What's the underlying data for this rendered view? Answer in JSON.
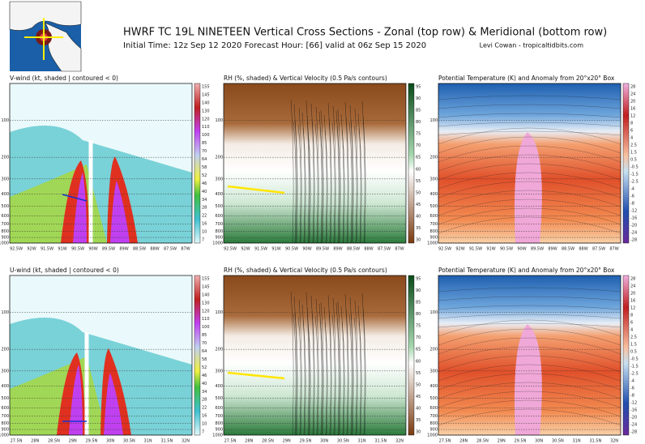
{
  "header": {
    "title": "HWRF TC 19L NINETEEN Vertical Cross Sections - Zonal (top row) & Meridional (bottom row)",
    "subtitle": "Initial Time: 12z Sep 12 2020 Forecast Hour: [66] valid at 06z Sep 15 2020",
    "credit": "Levi Cowan - tropicaltidbits.com"
  },
  "pressure_axis": {
    "ylim": [
      1000,
      50
    ],
    "log": true,
    "ticks": [
      100,
      200,
      300,
      400,
      500,
      600,
      700,
      800,
      900,
      1000
    ]
  },
  "rows": [
    {
      "xticks": [
        "92.5W",
        "92W",
        "91.5W",
        "91W",
        "90.5W",
        "90W",
        "89.5W",
        "89W",
        "88.5W",
        "88W",
        "87.5W",
        "87W"
      ],
      "panels": [
        {
          "title": "V-wind (kt, shaded | contoured < 0)"
        },
        {
          "title": "RH (%, shaded) & Vertical Velocity (0.5 Pa/s contours)"
        },
        {
          "title": "Potential Temperature (K) and Anomaly from 20°x20° Box"
        }
      ]
    },
    {
      "xticks": [
        "27.5N",
        "28N",
        "28.5N",
        "29N",
        "29.5N",
        "30N",
        "30.5N",
        "31N",
        "31.5N",
        "32N"
      ],
      "panels": [
        {
          "title": "U-wind (kt, shaded | contoured < 0)"
        },
        {
          "title": "RH (%, shaded) & Vertical Velocity (0.5 Pa/s contours)"
        },
        {
          "title": "Potential Temperature (K) and Anomaly from 20°x20° Box"
        }
      ]
    }
  ],
  "colorbars": [
    {
      "ticks": [
        155,
        145,
        140,
        130,
        120,
        110,
        100,
        85,
        70,
        64,
        58,
        52,
        46,
        40,
        34,
        28,
        22,
        16,
        10,
        7
      ]
    },
    {
      "ticks": [
        95,
        90,
        85,
        80,
        75,
        70,
        65,
        60,
        55,
        50,
        45,
        40,
        35,
        30
      ]
    },
    {
      "ticks": [
        28,
        24,
        20,
        16,
        12,
        8,
        6,
        4,
        2.5,
        1.5,
        0.5,
        -0.5,
        -1.5,
        -2.5,
        -4,
        -6,
        -8,
        -12,
        -16,
        -20,
        -24,
        -28
      ]
    }
  ]
}
